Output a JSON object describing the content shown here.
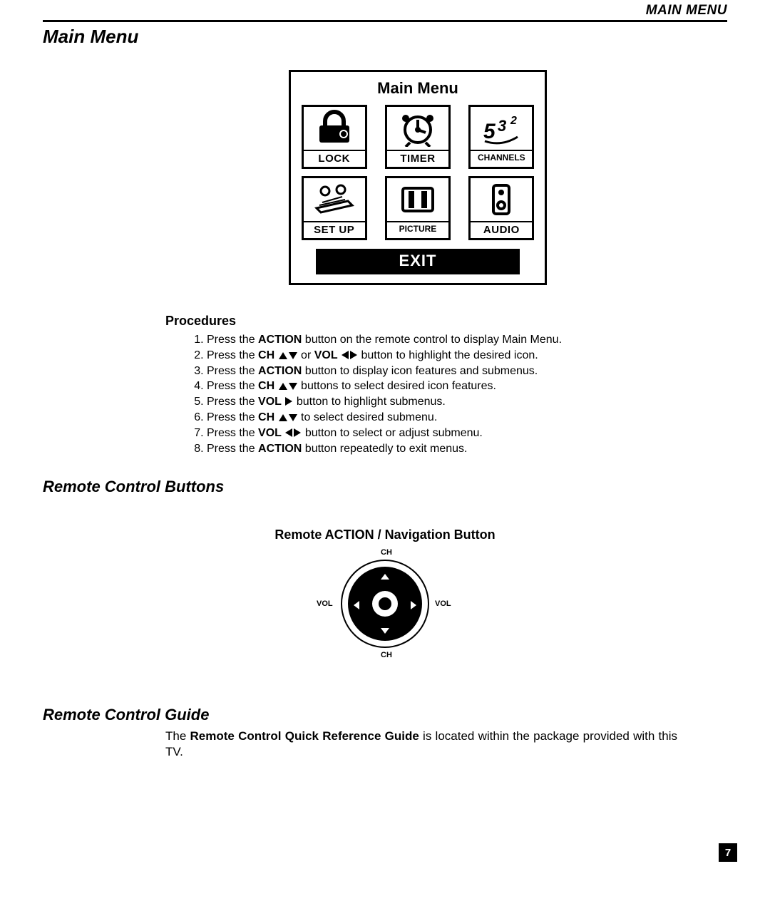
{
  "header": {
    "right_label": "MAIN MENU",
    "title": "Main Menu"
  },
  "menu": {
    "title": "Main Menu",
    "items": [
      {
        "label": "LOCK"
      },
      {
        "label": "TIMER"
      },
      {
        "label": "CHANNELS"
      },
      {
        "label": "SET UP"
      },
      {
        "label": "PICTURE"
      },
      {
        "label": "AUDIO"
      }
    ],
    "exit_label": "EXIT"
  },
  "procedures": {
    "heading": "Procedures",
    "items": [
      {
        "pre": "Press the ",
        "b1": "ACTION",
        "mid": " button on the remote control to display Main Menu."
      },
      {
        "pre": "Press the ",
        "b1": "CH",
        "sym1": "updown",
        "mid": " or ",
        "b2": "VOL",
        "sym2": "leftright",
        "post": " button to highlight the desired icon."
      },
      {
        "pre": "Press the ",
        "b1": "ACTION",
        "mid": " button to display icon features and submenus."
      },
      {
        "pre": "Press the ",
        "b1": "CH",
        "sym1": "updown",
        "mid": " buttons to select desired icon features."
      },
      {
        "pre": "Press the ",
        "b1": "VOL",
        "sym1": "right",
        "mid": " button to highlight submenus."
      },
      {
        "pre": "Press the ",
        "b1": "CH",
        "sym1": "updown",
        "mid": " to select desired submenu."
      },
      {
        "pre": "Press the ",
        "b1": "VOL",
        "sym1": "leftright",
        "mid": " button to select or adjust submenu."
      },
      {
        "pre": "Press the ",
        "b1": "ACTION",
        "mid": " button repeatedly to exit menus."
      }
    ]
  },
  "remote_buttons": {
    "heading": "Remote Control Buttons",
    "nav_title": "Remote ACTION / Navigation Button",
    "labels": {
      "top": "CH",
      "bottom": "CH",
      "left": "VOL",
      "right": "VOL"
    }
  },
  "guide": {
    "heading": "Remote Control Guide",
    "para_pre": "The ",
    "para_bold": "Remote Control Quick Reference Guide",
    "para_post": " is located within the package provided with this TV."
  },
  "page_number": "7",
  "colors": {
    "text": "#000000",
    "bg": "#ffffff",
    "inverse_bg": "#000000",
    "inverse_text": "#ffffff"
  }
}
